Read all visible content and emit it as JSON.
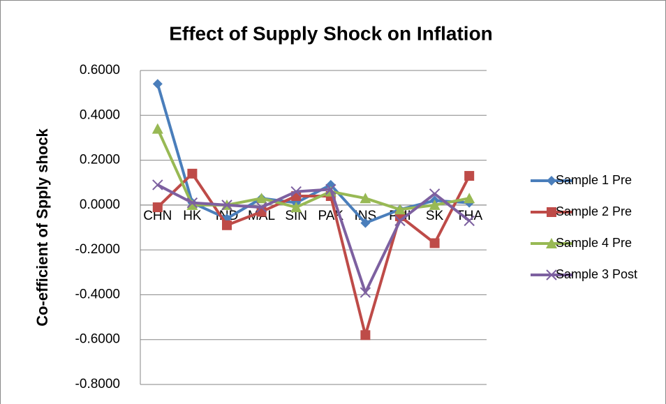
{
  "chart_data": {
    "type": "line",
    "title": "Effect of Supply Shock on Inflation",
    "y_label": "Co-efficient of Spply shock",
    "categories": [
      "CHN",
      "HK",
      "IND",
      "MAL",
      "SIN",
      "PAK",
      "INS",
      "PHI",
      "SK",
      "THA"
    ],
    "series": [
      {
        "name": "Sample 1 Pre",
        "color": "#4a7ebb",
        "marker": "diamond",
        "values": [
          0.54,
          0.01,
          -0.06,
          0.03,
          0.01,
          0.09,
          -0.08,
          -0.02,
          0.02,
          0.01
        ]
      },
      {
        "name": "Sample 2 Pre",
        "color": "#be4b48",
        "marker": "square",
        "values": [
          -0.01,
          0.14,
          -0.09,
          -0.03,
          0.04,
          0.04,
          -0.58,
          -0.05,
          -0.17,
          0.13
        ]
      },
      {
        "name": "Sample 4 Pre",
        "color": "#98b954",
        "marker": "triangle",
        "values": [
          0.34,
          0.0,
          0.0,
          0.03,
          -0.01,
          0.06,
          0.03,
          -0.02,
          0.0,
          0.03
        ]
      },
      {
        "name": "Sample 3 Post",
        "color": "#7d60a0",
        "marker": "x",
        "values": [
          0.09,
          0.01,
          0.0,
          -0.01,
          0.06,
          0.07,
          -0.39,
          -0.07,
          0.05,
          -0.07
        ]
      }
    ],
    "ylim": [
      -0.8,
      0.6
    ],
    "yticks": [
      {
        "value": 0.6,
        "label": "0.6000"
      },
      {
        "value": 0.4,
        "label": "0.4000"
      },
      {
        "value": 0.2,
        "label": "0.2000"
      },
      {
        "value": 0,
        "label": "0.0000"
      },
      {
        "value": -0.2,
        "label": "-0.2000"
      },
      {
        "value": -0.4,
        "label": "-0.4000"
      },
      {
        "value": -0.6,
        "label": "-0.6000"
      },
      {
        "value": -0.8,
        "label": "-0.8000"
      }
    ],
    "grid": true,
    "legend": "right"
  }
}
